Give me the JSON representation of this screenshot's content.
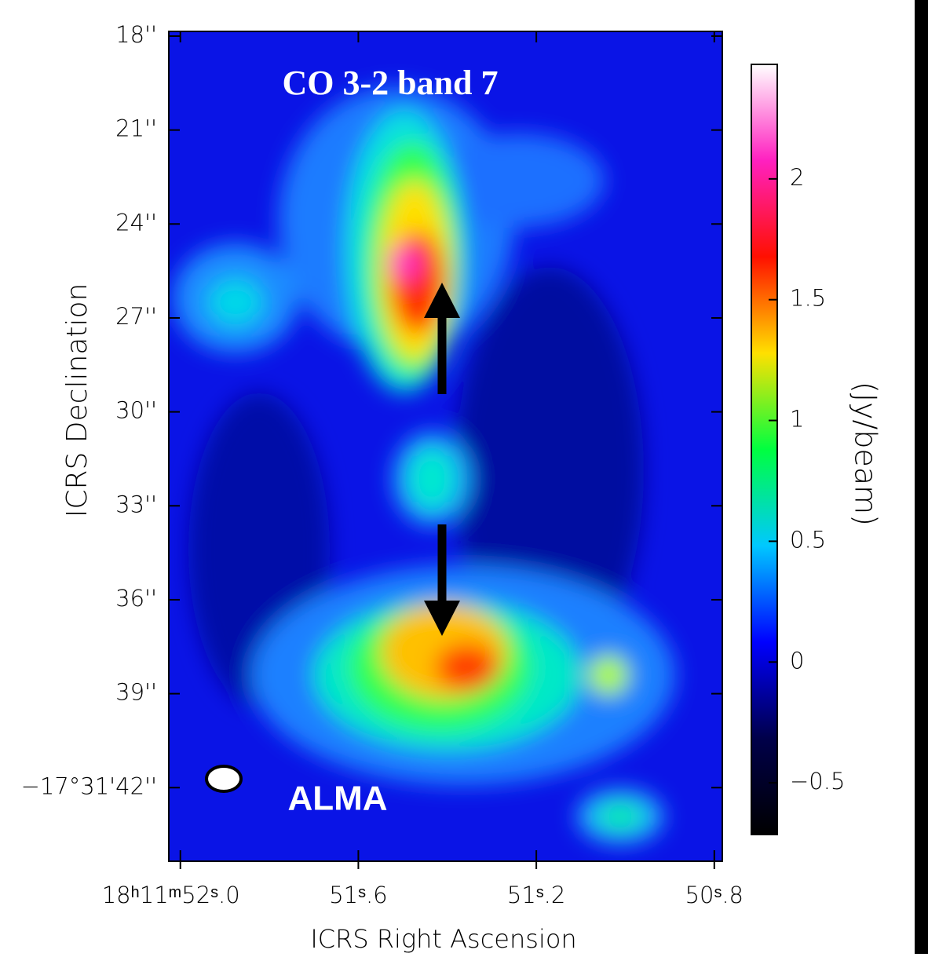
{
  "chart_data": {
    "type": "image",
    "annotations": [
      "CO 3-2 band 7",
      "ALMA"
    ],
    "x_label": "ICRS Right Ascension",
    "y_label": "ICRS Declination",
    "xlim": [
      52.026,
      50.782
    ],
    "xticks": [
      {
        "value": 52.0,
        "label": "18ʰ11ᵐ52ˢ.0"
      },
      {
        "value": 51.6,
        "label": "51ˢ.6"
      },
      {
        "value": 51.2,
        "label": "51ˢ.2"
      },
      {
        "value": 50.8,
        "label": "50ˢ.8"
      }
    ],
    "ylim": [
      17.85,
      44.35
    ],
    "yticks": [
      {
        "value": 18,
        "label": "18''"
      },
      {
        "value": 21,
        "label": "21''"
      },
      {
        "value": 24,
        "label": "24''"
      },
      {
        "value": 27,
        "label": "27''"
      },
      {
        "value": 30,
        "label": "30''"
      },
      {
        "value": 33,
        "label": "33''"
      },
      {
        "value": 36,
        "label": "36''"
      },
      {
        "value": 39,
        "label": "39''"
      },
      {
        "value": 42,
        "label": "−17°31'42''"
      }
    ],
    "colorbar": {
      "label": "(Jy/beam)",
      "clim": [
        -0.714,
        2.474
      ],
      "ticks": [
        {
          "value": -0.5,
          "label": "−0.5"
        },
        0,
        0.5,
        1,
        1.5,
        2
      ],
      "colors": [
        "#000000",
        "#00004a",
        "#0000ff",
        "#00c8ff",
        "#00ff40",
        "#ffe000",
        "#ff1000",
        "#ff20c0",
        "#ffffff"
      ]
    }
  }
}
